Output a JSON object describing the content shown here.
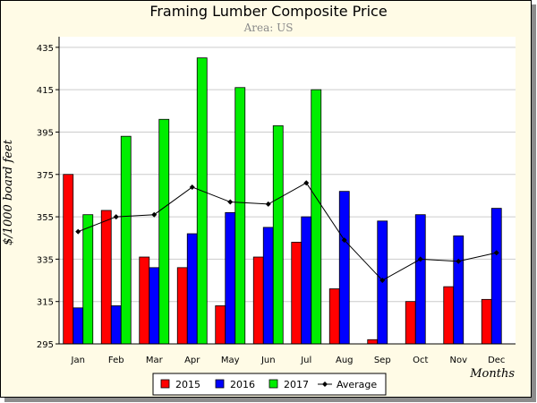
{
  "chart_data": {
    "type": "bar",
    "title": "Framing Lumber Composite Price",
    "subtitle": "Area: US",
    "xlabel": "Months",
    "ylabel": "$/1000 board feet",
    "categories": [
      "Jan",
      "Feb",
      "Mar",
      "Apr",
      "May",
      "Jun",
      "Jul",
      "Aug",
      "Sep",
      "Oct",
      "Nov",
      "Dec"
    ],
    "ylim": [
      295,
      440
    ],
    "yticks": [
      295,
      315,
      335,
      355,
      375,
      395,
      415,
      435
    ],
    "grid": true,
    "legend_position": "bottom-center",
    "series": [
      {
        "name": "2015",
        "type": "bar",
        "color": "#ff0000",
        "values": [
          375,
          358,
          336,
          331,
          313,
          336,
          343,
          321,
          297,
          315,
          322,
          316
        ]
      },
      {
        "name": "2016",
        "type": "bar",
        "color": "#0000ff",
        "values": [
          312,
          313,
          331,
          347,
          357,
          350,
          355,
          367,
          353,
          356,
          346,
          359
        ]
      },
      {
        "name": "2017",
        "type": "bar",
        "color": "#00ee00",
        "values": [
          356,
          393,
          401,
          430,
          416,
          398,
          415,
          null,
          null,
          null,
          null,
          null
        ]
      },
      {
        "name": "Average",
        "type": "line",
        "color": "#000000",
        "values": [
          348,
          355,
          356,
          369,
          362,
          361,
          371,
          344,
          325,
          335,
          334,
          338
        ]
      }
    ]
  }
}
